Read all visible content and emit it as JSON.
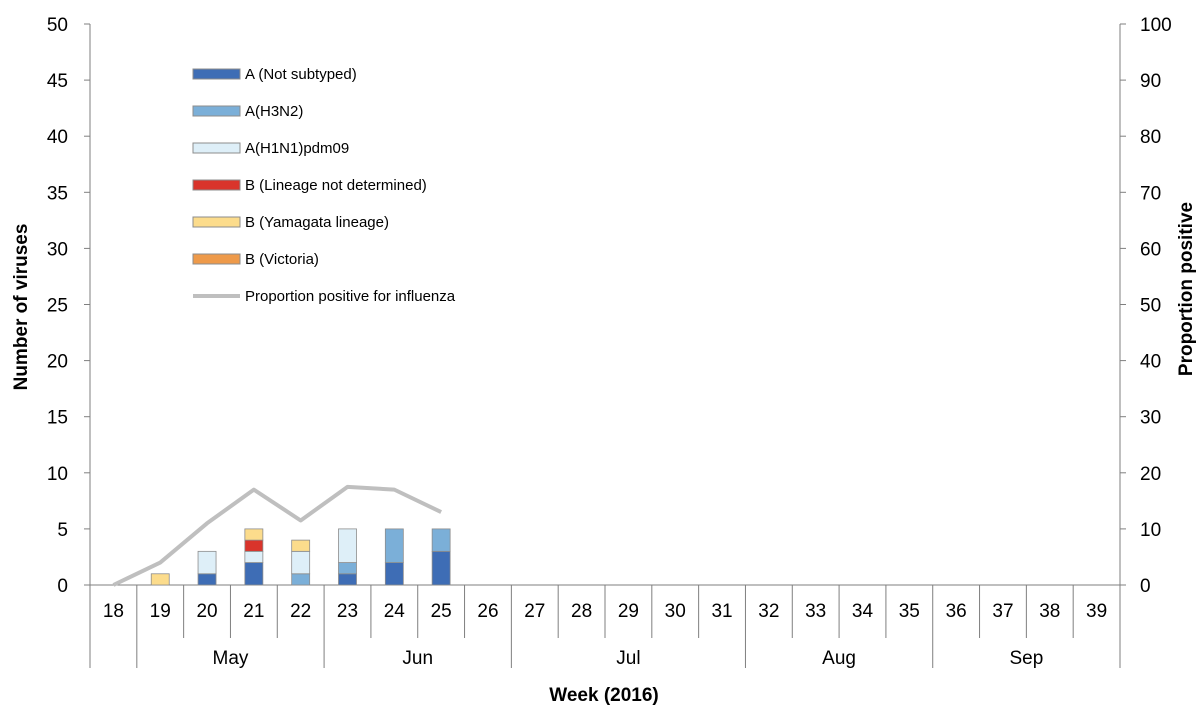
{
  "chart_data": {
    "type": "bar",
    "stacked": true,
    "xlabel": "Week (2016)",
    "ylabel": "Number of viruses",
    "y2label": "Proportion positive",
    "ylim": [
      0,
      50
    ],
    "y2lim": [
      0,
      100
    ],
    "yticks": [
      0,
      5,
      10,
      15,
      20,
      25,
      30,
      35,
      40,
      45,
      50
    ],
    "y2ticks": [
      0,
      10,
      20,
      30,
      40,
      50,
      60,
      70,
      80,
      90,
      100
    ],
    "categories": [
      "18",
      "19",
      "20",
      "21",
      "22",
      "23",
      "24",
      "25",
      "26",
      "27",
      "28",
      "29",
      "30",
      "31",
      "32",
      "33",
      "34",
      "35",
      "36",
      "37",
      "38",
      "39"
    ],
    "months": [
      {
        "label": "May",
        "from": "19",
        "to": "22"
      },
      {
        "label": "Jun",
        "from": "23",
        "to": "26"
      },
      {
        "label": "Jul",
        "from": "27",
        "to": "31"
      },
      {
        "label": "Aug",
        "from": "32",
        "to": "35"
      },
      {
        "label": "Sep",
        "from": "36",
        "to": "39"
      }
    ],
    "series": [
      {
        "name": "A (Not subtyped)",
        "color": "#3E6DB5",
        "values": [
          0,
          0,
          1,
          2,
          0,
          1,
          2,
          3,
          0,
          0,
          0,
          0,
          0,
          0,
          0,
          0,
          0,
          0,
          0,
          0,
          0,
          0
        ]
      },
      {
        "name": "A(H3N2)",
        "color": "#7BAFD8",
        "values": [
          0,
          0,
          0,
          0,
          1,
          1,
          3,
          2,
          0,
          0,
          0,
          0,
          0,
          0,
          0,
          0,
          0,
          0,
          0,
          0,
          0,
          0
        ]
      },
      {
        "name": "A(H1N1)pdm09",
        "color": "#DEEFF8",
        "values": [
          0,
          0,
          2,
          1,
          2,
          3,
          0,
          0,
          0,
          0,
          0,
          0,
          0,
          0,
          0,
          0,
          0,
          0,
          0,
          0,
          0,
          0
        ]
      },
      {
        "name": "B (Lineage not determined)",
        "color": "#D9342B",
        "values": [
          0,
          0,
          0,
          1,
          0,
          0,
          0,
          0,
          0,
          0,
          0,
          0,
          0,
          0,
          0,
          0,
          0,
          0,
          0,
          0,
          0,
          0
        ]
      },
      {
        "name": "B (Yamagata lineage)",
        "color": "#FCDC8C",
        "values": [
          0,
          1,
          0,
          1,
          1,
          0,
          0,
          0,
          0,
          0,
          0,
          0,
          0,
          0,
          0,
          0,
          0,
          0,
          0,
          0,
          0,
          0
        ]
      },
      {
        "name": "B (Victoria)",
        "color": "#EE9A4A",
        "values": [
          0,
          0,
          0,
          0,
          0,
          0,
          0,
          0,
          0,
          0,
          0,
          0,
          0,
          0,
          0,
          0,
          0,
          0,
          0,
          0,
          0,
          0
        ]
      }
    ],
    "line": {
      "name": "Proportion positive for influenza",
      "color": "#BFBFBF",
      "axis": "right",
      "x": [
        "18",
        "19",
        "20",
        "21",
        "22",
        "23",
        "24",
        "25"
      ],
      "values": [
        0,
        4,
        11,
        17,
        11.5,
        17.5,
        17,
        13
      ]
    },
    "legend_position": "top-left"
  }
}
